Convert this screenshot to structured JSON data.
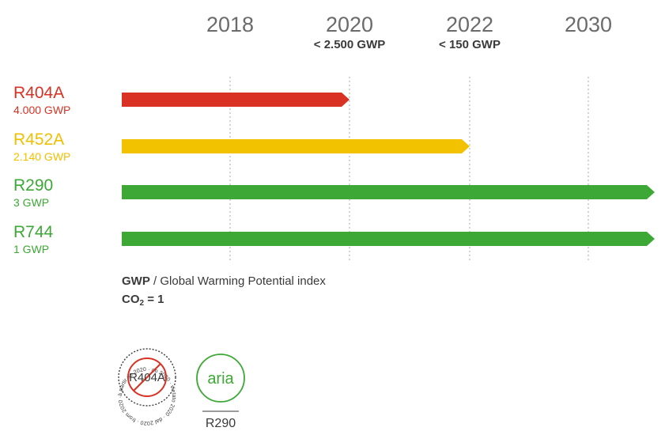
{
  "chart_data": {
    "type": "timeline",
    "x_ticks": [
      {
        "year": 2018,
        "label": "2018",
        "limit": ""
      },
      {
        "year": 2020,
        "label": "2020",
        "limit": "< 2.500 GWP"
      },
      {
        "year": 2022,
        "label": "2022",
        "limit": "< 150 GWP"
      },
      {
        "year": 2030,
        "label": "2030",
        "limit": ""
      }
    ],
    "series": [
      {
        "name": "R404A",
        "gwp_label": "4.000 GWP",
        "gwp": 4000,
        "end_year": 2020,
        "open_ended": false,
        "color": "#d93224",
        "label_color": "#d93224"
      },
      {
        "name": "R452A",
        "gwp_label": "2.140 GWP",
        "gwp": 2140,
        "end_year": 2022,
        "open_ended": false,
        "color": "#f2c200",
        "label_color": "#f0c000"
      },
      {
        "name": "R290",
        "gwp_label": "3 GWP",
        "gwp": 3,
        "end_year": null,
        "open_ended": true,
        "color": "#3da836",
        "label_color": "#3da836"
      },
      {
        "name": "R744",
        "gwp_label": "1 GWP",
        "gwp": 1,
        "end_year": null,
        "open_ended": true,
        "color": "#3da836",
        "label_color": "#3da836"
      }
    ],
    "gridlines": true
  },
  "note": {
    "line1_bold": "GWP",
    "line1_rest": " / Global Warming Potential index",
    "line2_prefix": "CO",
    "line2_sub": "2",
    "line2_suffix": " = 1"
  },
  "badges": {
    "banned": {
      "label": "R404A",
      "ring_text": "à partir de 2020 · ab 2020 · vietato 2020 · dal 2020 · from 2020 ·",
      "color": "#d93224"
    },
    "approved": {
      "logo_text": "aria",
      "caption": "R290",
      "color": "#3da836"
    }
  }
}
